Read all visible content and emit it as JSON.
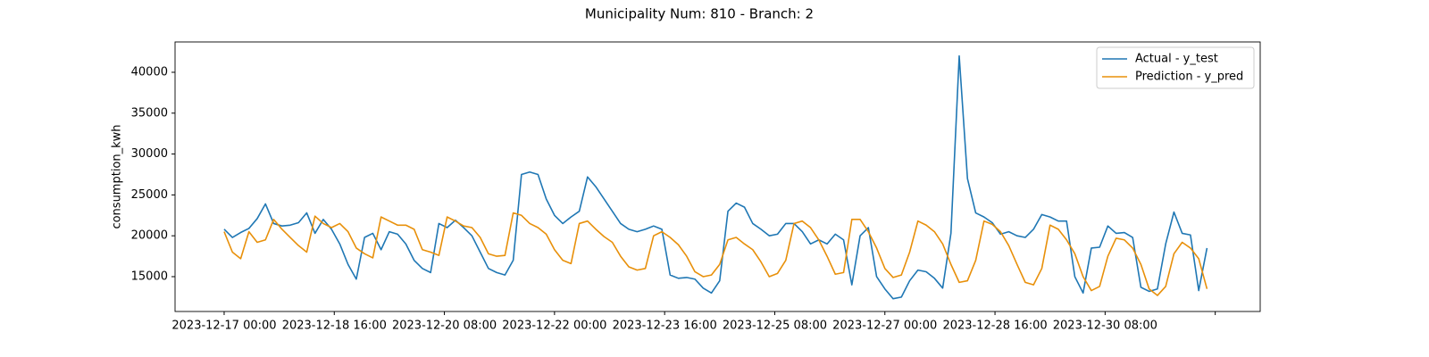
{
  "chart_data": {
    "type": "line",
    "title": "Municipality Num: 810 - Branch: 2",
    "ylabel": "consumption_kwh",
    "x": [
      "2023-12-17 00:00",
      "2023-12-17 03:00",
      "2023-12-17 06:00",
      "2023-12-17 09:00",
      "2023-12-17 12:00",
      "2023-12-17 15:00",
      "2023-12-17 18:00",
      "2023-12-17 21:00",
      "2023-12-18 00:00",
      "2023-12-18 03:00",
      "2023-12-18 06:00",
      "2023-12-18 09:00",
      "2023-12-18 12:00",
      "2023-12-18 15:00",
      "2023-12-18 18:00",
      "2023-12-18 21:00",
      "2023-12-19 00:00",
      "2023-12-19 03:00",
      "2023-12-19 06:00",
      "2023-12-19 09:00",
      "2023-12-19 12:00",
      "2023-12-19 15:00",
      "2023-12-19 18:00",
      "2023-12-19 21:00",
      "2023-12-20 00:00",
      "2023-12-20 03:00",
      "2023-12-20 06:00",
      "2023-12-20 09:00",
      "2023-12-20 12:00",
      "2023-12-20 15:00",
      "2023-12-20 18:00",
      "2023-12-20 21:00",
      "2023-12-21 00:00",
      "2023-12-21 03:00",
      "2023-12-21 06:00",
      "2023-12-21 09:00",
      "2023-12-21 12:00",
      "2023-12-21 15:00",
      "2023-12-21 18:00",
      "2023-12-21 21:00",
      "2023-12-22 00:00",
      "2023-12-22 03:00",
      "2023-12-22 06:00",
      "2023-12-22 09:00",
      "2023-12-22 12:00",
      "2023-12-22 15:00",
      "2023-12-22 18:00",
      "2023-12-22 21:00",
      "2023-12-23 00:00",
      "2023-12-23 03:00",
      "2023-12-23 06:00",
      "2023-12-23 09:00",
      "2023-12-23 12:00",
      "2023-12-23 15:00",
      "2023-12-23 18:00",
      "2023-12-23 21:00",
      "2023-12-24 00:00",
      "2023-12-24 03:00",
      "2023-12-24 06:00",
      "2023-12-24 09:00",
      "2023-12-24 12:00",
      "2023-12-24 15:00",
      "2023-12-24 18:00",
      "2023-12-24 21:00",
      "2023-12-25 00:00",
      "2023-12-25 03:00",
      "2023-12-25 06:00",
      "2023-12-25 09:00",
      "2023-12-25 12:00",
      "2023-12-25 15:00",
      "2023-12-25 18:00",
      "2023-12-25 21:00",
      "2023-12-26 00:00",
      "2023-12-26 03:00",
      "2023-12-26 06:00",
      "2023-12-26 09:00",
      "2023-12-26 12:00",
      "2023-12-26 15:00",
      "2023-12-26 18:00",
      "2023-12-26 21:00",
      "2023-12-27 00:00",
      "2023-12-27 03:00",
      "2023-12-27 06:00",
      "2023-12-27 09:00",
      "2023-12-27 12:00",
      "2023-12-27 15:00",
      "2023-12-27 18:00",
      "2023-12-27 21:00",
      "2023-12-28 00:00",
      "2023-12-28 03:00",
      "2023-12-28 06:00",
      "2023-12-28 09:00",
      "2023-12-28 12:00",
      "2023-12-28 15:00",
      "2023-12-28 18:00",
      "2023-12-28 21:00",
      "2023-12-29 00:00",
      "2023-12-29 03:00",
      "2023-12-29 06:00",
      "2023-12-29 09:00",
      "2023-12-29 12:00",
      "2023-12-29 15:00",
      "2023-12-29 18:00",
      "2023-12-29 21:00",
      "2023-12-30 00:00",
      "2023-12-30 03:00",
      "2023-12-30 06:00",
      "2023-12-30 09:00",
      "2023-12-30 12:00",
      "2023-12-30 15:00",
      "2023-12-30 18:00",
      "2023-12-30 21:00",
      "2023-12-31 00:00",
      "2023-12-31 03:00",
      "2023-12-31 06:00",
      "2023-12-31 09:00",
      "2023-12-31 12:00",
      "2023-12-31 15:00",
      "2023-12-31 18:00",
      "2023-12-31 21:00"
    ],
    "series": [
      {
        "name": "Actual - y_test",
        "color": "#1f77b4",
        "values": [
          20800,
          19800,
          20400,
          20900,
          22100,
          23900,
          21500,
          21200,
          21300,
          21600,
          22800,
          20300,
          22000,
          20800,
          19000,
          16500,
          14700,
          19800,
          20300,
          18300,
          20500,
          20200,
          19000,
          17000,
          16000,
          15500,
          21500,
          21000,
          21900,
          21000,
          20000,
          18000,
          16000,
          15500,
          15200,
          17000,
          27500,
          27800,
          27500,
          24500,
          22500,
          21500,
          22300,
          23000,
          27200,
          26000,
          24500,
          23000,
          21500,
          20800,
          20500,
          20800,
          21200,
          20800,
          15200,
          14800,
          14900,
          14700,
          13600,
          13000,
          14500,
          23000,
          24000,
          23500,
          21500,
          20800,
          20000,
          20200,
          21500,
          21500,
          20500,
          19000,
          19500,
          19000,
          20200,
          19500,
          14000,
          20000,
          21000,
          15000,
          13500,
          12300,
          12500,
          14500,
          15800,
          15600,
          14800,
          13600,
          20300,
          42000,
          27000,
          22800,
          22300,
          21600,
          20200,
          20500,
          20000,
          19800,
          20800,
          22600,
          22300,
          21800,
          21800,
          15000,
          13000,
          18500,
          18600,
          21200,
          20300,
          20400,
          19800,
          13700,
          13200,
          13500,
          19000,
          22900,
          20300,
          20100,
          13300,
          18500
        ]
      },
      {
        "name": "Prediction - y_pred",
        "color": "#e8900a",
        "values": [
          20500,
          18000,
          17200,
          20500,
          19200,
          19500,
          22000,
          20800,
          19800,
          18800,
          18000,
          22400,
          21500,
          21000,
          21500,
          20500,
          18500,
          17800,
          17300,
          22300,
          21800,
          21300,
          21300,
          20800,
          18300,
          18000,
          17600,
          22300,
          21800,
          21200,
          21000,
          19800,
          17800,
          17500,
          17600,
          22800,
          22500,
          21500,
          21000,
          20200,
          18300,
          17000,
          16600,
          21500,
          21800,
          20800,
          19900,
          19200,
          17500,
          16200,
          15800,
          16000,
          20000,
          20500,
          19800,
          18900,
          17500,
          15600,
          15000,
          15200,
          16500,
          19500,
          19800,
          19000,
          18300,
          16800,
          15000,
          15400,
          17000,
          21500,
          21800,
          21000,
          19500,
          17500,
          15300,
          15500,
          22000,
          22000,
          20500,
          18500,
          16000,
          14900,
          15200,
          18000,
          21800,
          21300,
          20500,
          19000,
          16500,
          14300,
          14500,
          17000,
          21800,
          21400,
          20500,
          18800,
          16500,
          14300,
          14000,
          16000,
          21300,
          20800,
          19500,
          17800,
          15000,
          13300,
          13800,
          17500,
          19700,
          19500,
          18500,
          16500,
          13500,
          12700,
          13800,
          17800,
          19200,
          18500,
          17200,
          13500
        ]
      }
    ],
    "xlim": [
      "2023-12-16 06:10",
      "2024-01-01 16:20"
    ],
    "xticks": [
      "2023-12-17 00:00",
      "2023-12-18 16:00",
      "2023-12-20 08:00",
      "2023-12-22 00:00",
      "2023-12-23 16:00",
      "2023-12-25 08:00",
      "2023-12-27 00:00",
      "2023-12-28 16:00",
      "2023-12-30 08:00",
      {
        "value": "2024-01-01 00:00"
      }
    ],
    "ylim": [
      10740,
      43710
    ],
    "yticks": [
      15000,
      20000,
      25000,
      30000,
      35000,
      40000
    ],
    "legend": "upper right"
  }
}
